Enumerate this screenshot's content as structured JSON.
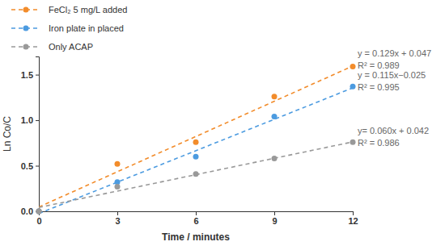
{
  "chart_data": {
    "type": "scatter",
    "x_label": "Time / minutes",
    "y_label": "Ln Co/C",
    "x": [
      0,
      3,
      6,
      9,
      12
    ],
    "series": [
      {
        "name": "FeCl₂ 5 mg/L added",
        "color": "#f28c2b",
        "marker": "circle",
        "line_style": "dashed",
        "values": [
          0,
          0.52,
          0.76,
          1.26,
          1.59
        ],
        "fit": {
          "slope": 0.129,
          "intercept": 0.047
        },
        "equation": "y = 0.129x + 0.047",
        "r2_label": "R² = 0.989"
      },
      {
        "name": "Iron plate in placed",
        "color": "#4c9be0",
        "marker": "circle",
        "line_style": "dashed",
        "values": [
          0,
          0.32,
          0.6,
          1.04,
          1.37
        ],
        "fit": {
          "slope": 0.115,
          "intercept": -0.025
        },
        "equation": "y = 0.115x−0.025",
        "r2_label": "R² = 0.995"
      },
      {
        "name": "Only ACAP",
        "color": "#999999",
        "marker": "circle",
        "line_style": "dashed",
        "values": [
          0,
          0.27,
          0.41,
          0.58,
          0.76
        ],
        "fit": {
          "slope": 0.06,
          "intercept": 0.042
        },
        "equation": "y= 0.060x + 0.042",
        "r2_label": "R² = 0.986"
      }
    ],
    "xlim": [
      0,
      12
    ],
    "xticks": [
      0,
      3,
      6,
      9,
      12
    ],
    "ylim": [
      0,
      1.7
    ],
    "yticks": [
      {
        "value": 0,
        "label": "0.0"
      },
      {
        "value": 0.5,
        "label": "0.5"
      },
      {
        "value": 1,
        "label": "1.0"
      },
      {
        "value": 1.5,
        "label": "1.5"
      }
    ],
    "grid": false,
    "legend": "upper left"
  }
}
